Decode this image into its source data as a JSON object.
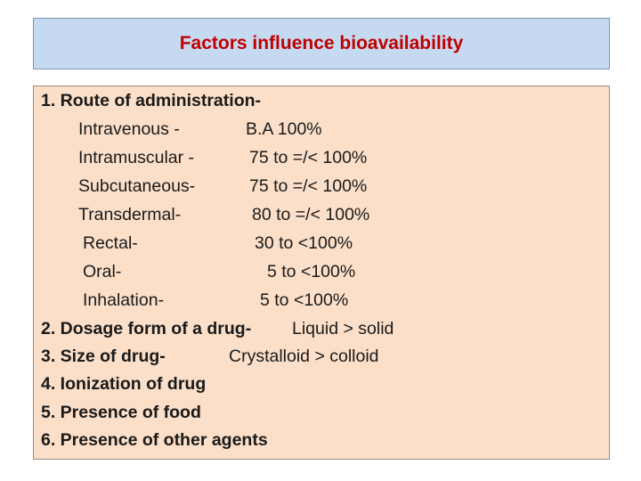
{
  "title": "Factors influence bioavailability",
  "sections": {
    "route": {
      "heading": "1.  Route of administration-",
      "rows": [
        {
          "route": "Intravenous  -",
          "value": "B.A   100%"
        },
        {
          "route": "Intramuscular -",
          "value": "75  to =/< 100%"
        },
        {
          "route": "Subcutaneous-",
          "value": "75  to =/< 100%"
        },
        {
          "route": "Transdermal-",
          "value": "80  to =/< 100%"
        },
        {
          "route": "Rectal-",
          "value": "30  to <100%"
        },
        {
          "route": "Oral-",
          "value": "5  to <100%"
        },
        {
          "route": "Inhalation-",
          "value": "5 to <100%"
        }
      ]
    },
    "dosage_form": {
      "heading": "2. Dosage form of a drug-",
      "value": "Liquid  > solid"
    },
    "size": {
      "heading": "3. Size of drug-",
      "value": "Crystalloid  >  colloid"
    },
    "ionization": {
      "heading": "4. Ionization of drug"
    },
    "food": {
      "heading": "5. Presence of food"
    },
    "other_agents": {
      "heading": "6. Presence of other agents"
    }
  }
}
